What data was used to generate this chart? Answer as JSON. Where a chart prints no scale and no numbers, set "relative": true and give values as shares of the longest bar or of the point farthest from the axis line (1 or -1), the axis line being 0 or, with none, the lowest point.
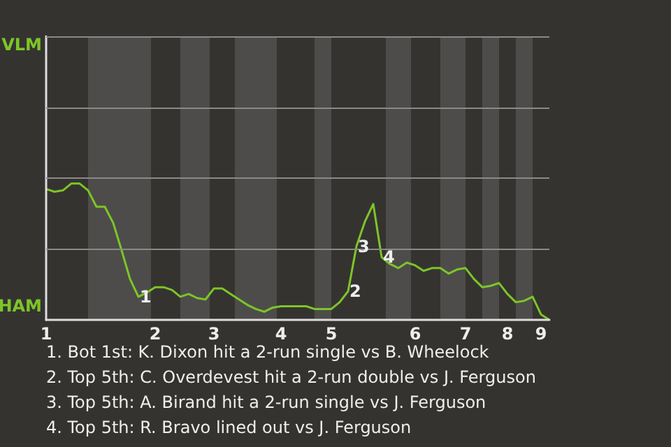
{
  "chart_data": {
    "type": "line",
    "relative": true,
    "categories": [
      "1",
      null,
      null,
      null,
      null,
      null,
      null,
      null,
      null,
      null,
      null,
      null,
      null,
      "2",
      null,
      null,
      null,
      null,
      null,
      null,
      "3",
      null,
      null,
      null,
      null,
      null,
      null,
      null,
      "4",
      null,
      null,
      null,
      null,
      null,
      "5",
      null,
      null,
      null,
      null,
      null,
      null,
      null,
      null,
      null,
      "6",
      null,
      null,
      null,
      null,
      null,
      "7",
      null,
      null,
      null,
      null,
      "8",
      null,
      null,
      null,
      "9",
      null
    ],
    "series": [
      {
        "color": "#7dc528",
        "values": [
          0.96,
          0.94,
          0.95,
          1,
          1,
          0.95,
          0.83,
          0.83,
          0.71,
          0.51,
          0.3,
          0.17,
          0.2,
          0.24,
          0.24,
          0.22,
          0.17,
          0.19,
          0.16,
          0.15,
          0.23,
          0.23,
          0.19,
          0.15,
          0.11,
          0.08,
          0.06,
          0.09,
          0.1,
          0.1,
          0.1,
          0.1,
          0.08,
          0.08,
          0.08,
          0.13,
          0.21,
          0.54,
          0.72,
          0.85,
          0.46,
          0.41,
          0.38,
          0.42,
          0.4,
          0.36,
          0.38,
          0.38,
          0.34,
          0.37,
          0.38,
          0.3,
          0.24,
          0.25,
          0.27,
          0.19,
          0.13,
          0.14,
          0.17,
          0.04,
          0
        ]
      }
    ],
    "marker": "none",
    "ref_lines": [
      {
        "axis": "y",
        "value": 0.52,
        "color": "#8a8a8a"
      },
      {
        "axis": "y",
        "value": 1.04,
        "color": "#8a8a8a"
      },
      {
        "axis": "y",
        "value": 1.56,
        "color": "#8a8a8a"
      },
      {
        "axis": "y",
        "value": 2.08,
        "color": "#8a8a8a"
      }
    ],
    "annotations": [
      {
        "text": "1",
        "y": 0.17
      },
      {
        "text": "2",
        "y": 0.21
      },
      {
        "text": "3",
        "y": 0.54
      },
      {
        "text": "4",
        "y": 0.46
      },
      "VLM",
      "HAM",
      "1. Bot 1st: K. Dixon hit a 2-run single vs B. Wheelock",
      "2. Top 5th: C. Overdevest hit a 2-run double vs J. Ferguson",
      "3. Top 5th: A. Birand hit a 2-run single vs J. Ferguson",
      "4. Top 5th: R. Bravo lined out vs J. Ferguson"
    ]
  }
}
